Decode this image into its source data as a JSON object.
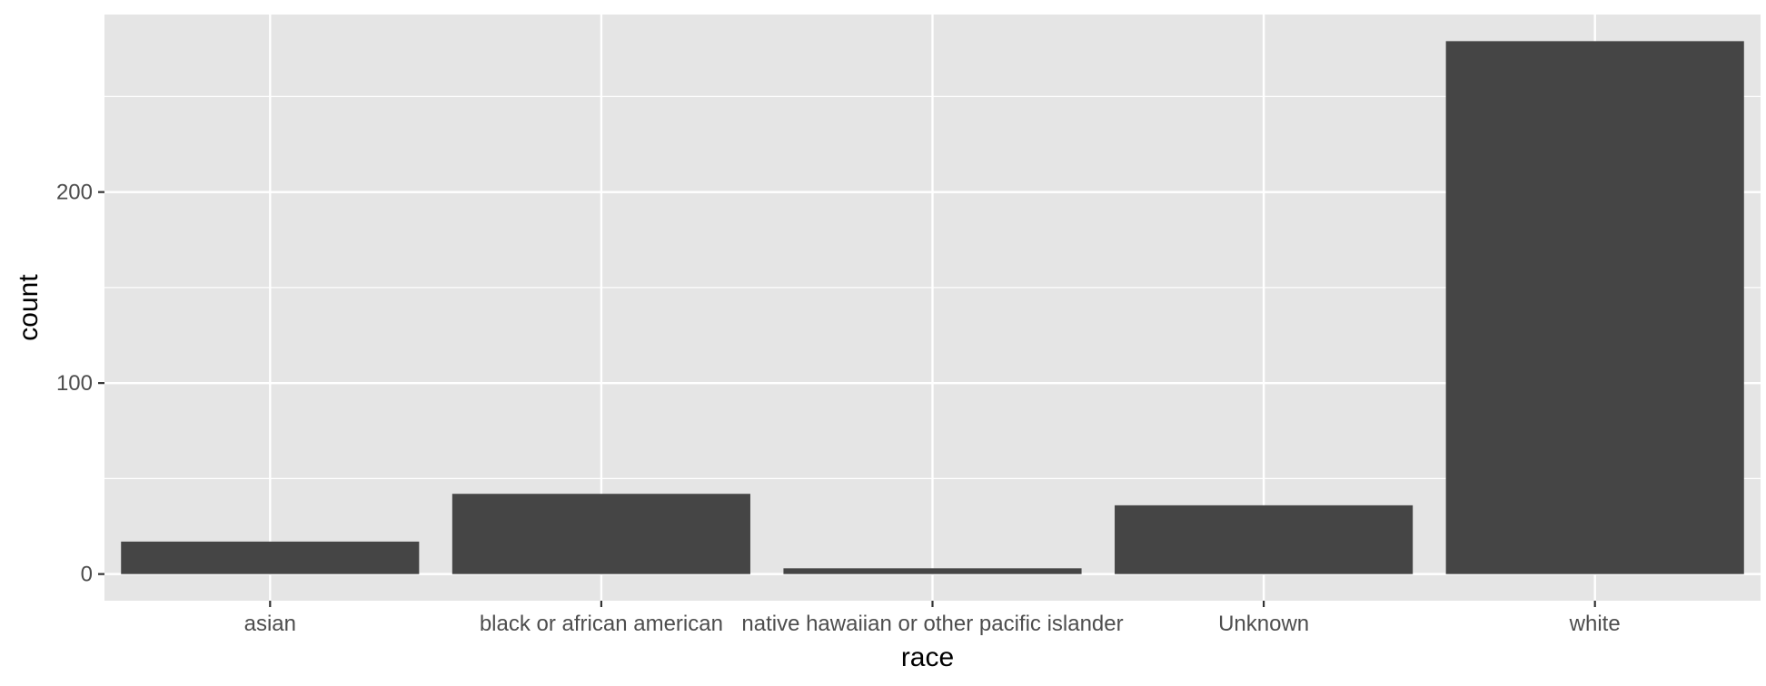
{
  "chart_data": {
    "type": "bar",
    "categories": [
      "asian",
      "black or african american",
      "native hawaiian or other pacific islander",
      "Unknown",
      "white"
    ],
    "values": [
      17,
      42,
      3,
      36,
      279
    ],
    "xlabel": "race",
    "ylabel": "count",
    "ylim": [
      -13.95,
      292.95
    ],
    "yticks": [
      0,
      100,
      200
    ],
    "yticks_minor": [
      50,
      150,
      250
    ],
    "grid": true,
    "legend": "none",
    "colors": {
      "bar": "#454545",
      "panel": "#e5e5e5",
      "grid": "#ffffff"
    }
  }
}
